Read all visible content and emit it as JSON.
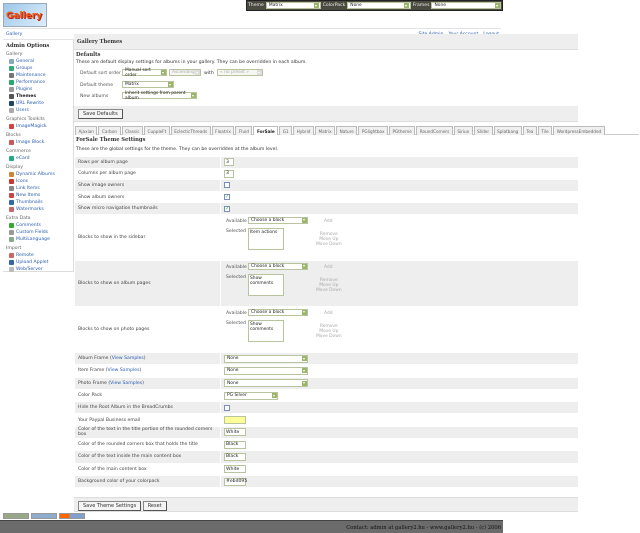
{
  "topbar": {
    "theme_label": "Theme",
    "theme_value": "Matrix",
    "colorpack_label": "ColorPack",
    "colorpack_value": "None",
    "frames_label": "Frames",
    "frames_value": "None"
  },
  "logo": {
    "text": "Gallery"
  },
  "breadcrumb": {
    "home": "Gallery",
    "links": [
      "Site Admin",
      "Your Account",
      "Logout"
    ]
  },
  "sidebar": {
    "title": "Admin Options",
    "groups": [
      {
        "label": "Gallery",
        "items": [
          {
            "label": "General",
            "color": "#8ab"
          },
          {
            "label": "Groups",
            "color": "#3a7"
          },
          {
            "label": "Maintenance",
            "color": "#777"
          },
          {
            "label": "Performance",
            "color": "#2a6"
          },
          {
            "label": "Plugins",
            "color": "#999"
          },
          {
            "label": "Themes",
            "color": "#555",
            "current": true
          },
          {
            "label": "URL Rewrite",
            "color": "#246"
          },
          {
            "label": "Users",
            "color": "#aaa"
          }
        ]
      },
      {
        "label": "Graphics Toolkits",
        "items": [
          {
            "label": "ImageMagick",
            "color": "#c44"
          }
        ]
      },
      {
        "label": "Blocks",
        "items": [
          {
            "label": "Image Block",
            "color": "#c55"
          }
        ]
      },
      {
        "label": "Commerce",
        "items": [
          {
            "label": "eCard",
            "color": "#2a8"
          }
        ]
      },
      {
        "label": "Display",
        "items": [
          {
            "label": "Dynamic Albums",
            "color": "#c83"
          },
          {
            "label": "Icons",
            "color": "#c33"
          },
          {
            "label": "Link Items",
            "color": "#888"
          },
          {
            "label": "New Items",
            "color": "#c44"
          },
          {
            "label": "Thumbnails",
            "color": "#36a"
          },
          {
            "label": "Watermarks",
            "color": "#c66"
          }
        ]
      },
      {
        "label": "Extra Data",
        "items": [
          {
            "label": "Comments",
            "color": "#3a3"
          },
          {
            "label": "Custom Fields",
            "color": "#999"
          },
          {
            "label": "MultiLanguage",
            "color": "#8a8"
          }
        ]
      },
      {
        "label": "Import",
        "items": [
          {
            "label": "Remote",
            "color": "#c66"
          },
          {
            "label": "Upload Applet",
            "color": "#36a"
          },
          {
            "label": "Web/Server",
            "color": "#bbb"
          }
        ]
      }
    ]
  },
  "main": {
    "title": "Gallery Themes",
    "defaults": {
      "heading": "Defaults",
      "description": "These are default display settings for albums in your gallery. They can be overridden in each album.",
      "sort_label": "Default sort order",
      "sort_value": "Manual sort order",
      "direction_value": "Ascending",
      "with_label": "with",
      "preset_value": "« no preset »",
      "theme_label": "Default theme",
      "theme_value": "Matrix",
      "new_albums_label": "New albums",
      "new_albums_value": "Inherit settings from parent album",
      "save_label": "Save Defaults"
    },
    "tabs": [
      "Ajaxian",
      "Carbon",
      "Classic",
      "CuppleFt",
      "EclecticThreads",
      "Floatrix",
      "Fluid",
      "ForSale",
      "G1",
      "Hybrid",
      "Matrix",
      "Nature",
      "PGlightbox",
      "PGtheme",
      "RoundCorners",
      "Siriux",
      "Slider",
      "Splatbang",
      "Tea",
      "Tile",
      "WordpressEmbedded"
    ],
    "active_tab": "ForSale",
    "settings": {
      "heading": "ForSale Theme Settings",
      "description": "These are the global settings for the theme. They can be overridden at the album level.",
      "block_labels": {
        "available": "Available",
        "selected": "Selected",
        "choose": "Choose a block",
        "add": "Add",
        "remove": "Remove",
        "move_up": "Move Up",
        "move_down": "Move Down"
      },
      "rows": [
        {
          "label": "Rows per album page",
          "type": "text",
          "value": "3"
        },
        {
          "label": "Columns per album page",
          "type": "text",
          "value": "3"
        },
        {
          "label": "Show image owners",
          "type": "checkbox",
          "checked": false
        },
        {
          "label": "Show album owners",
          "type": "checkbox",
          "checked": true
        },
        {
          "label": "Show micro navigation thumbnails",
          "type": "checkbox",
          "checked": true
        },
        {
          "label": "Blocks to show in the sidebar",
          "type": "blocks",
          "selected": "Item actions"
        },
        {
          "label": "Blocks to show on album pages",
          "type": "blocks",
          "selected": "Show comments"
        },
        {
          "label": "Blocks to show on photo pages",
          "type": "blocks",
          "selected": "Show comments"
        },
        {
          "label": "Album Frame",
          "link": "View Samples",
          "type": "select",
          "value": "None"
        },
        {
          "label": "Item Frame",
          "link": "View Samples",
          "type": "select",
          "value": "None"
        },
        {
          "label": "Photo Frame",
          "link": "View Samples",
          "type": "select",
          "value": "None"
        },
        {
          "label": "Color Pack",
          "type": "select-short",
          "value": "PG Silver"
        },
        {
          "label": "Hide the Root Album in the BreadCrumbs",
          "type": "checkbox",
          "checked": false
        },
        {
          "label": "Your Paypal Business email",
          "type": "text-yellow",
          "value": ""
        },
        {
          "label": "Color of the text in the title portion of the rounded corners box",
          "type": "text",
          "value": "White"
        },
        {
          "label": "Color of the rounded corners box that holds the title",
          "type": "text",
          "value": "Black"
        },
        {
          "label": "Color of the text inside the main content box",
          "type": "text",
          "value": "Black"
        },
        {
          "label": "Color of the main content box",
          "type": "text",
          "value": "White"
        },
        {
          "label": "Background color of your colorpack",
          "type": "text",
          "value": "#ebd095"
        }
      ],
      "save_label": "Save Theme Settings",
      "reset_label": "Reset"
    }
  },
  "footer": {
    "text": "Contact: admin at gallery2.hu - www.gallery2.hu - (c) 2006"
  }
}
